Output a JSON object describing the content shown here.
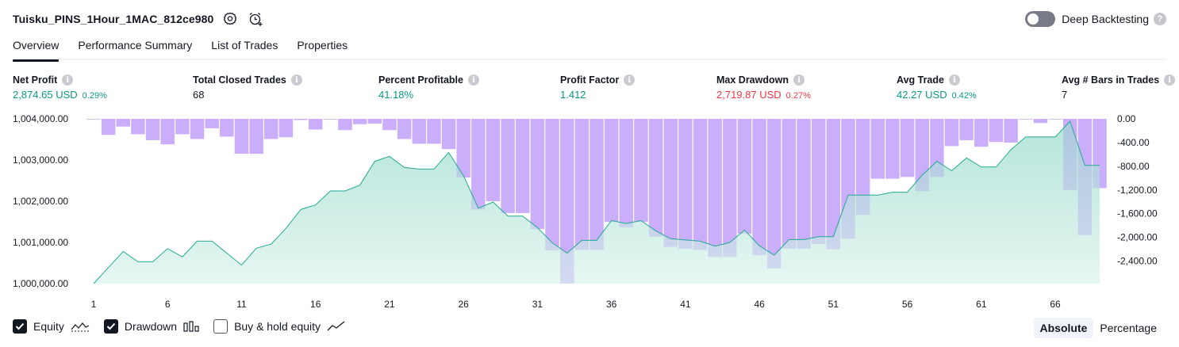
{
  "header": {
    "title": "Tuisku_PINS_1Hour_1MAC_812ce980"
  },
  "deep_backtesting": {
    "label": "Deep Backtesting",
    "help": "?"
  },
  "tabs": [
    {
      "label": "Overview"
    },
    {
      "label": "Performance Summary"
    },
    {
      "label": "List of Trades"
    },
    {
      "label": "Properties"
    }
  ],
  "metrics": {
    "info_glyph": "i",
    "net_profit": {
      "label": "Net Profit",
      "value": "2,874.65 USD",
      "pct": "0.29%"
    },
    "total_closed_trades": {
      "label": "Total Closed Trades",
      "value": "68"
    },
    "percent_profitable": {
      "label": "Percent Profitable",
      "value": "41.18%"
    },
    "profit_factor": {
      "label": "Profit Factor",
      "value": "1.412"
    },
    "max_drawdown": {
      "label": "Max Drawdown",
      "value": "2,719.87 USD",
      "pct": "0.27%"
    },
    "avg_trade": {
      "label": "Avg Trade",
      "value": "42.27 USD",
      "pct": "0.42%"
    },
    "avg_bars": {
      "label": "Avg # Bars in Trades",
      "value": "7"
    }
  },
  "legend": {
    "equity": "Equity",
    "drawdown": "Drawdown",
    "buy_hold": "Buy & hold equity"
  },
  "mode": {
    "absolute": "Absolute",
    "percentage": "Percentage"
  },
  "colors": {
    "equity_line": "#22ab94",
    "equity_fill": "#c7ebe2",
    "drawdown_bar": "#d7b8fc",
    "positive": "#089981",
    "negative": "#f23645"
  },
  "chart_data": {
    "type": "line",
    "x_ticks": [
      1,
      6,
      11,
      16,
      21,
      26,
      31,
      36,
      41,
      46,
      51,
      56,
      61,
      66
    ],
    "y_left_ticks": [
      "1,004,000.00",
      "1,003,000.00",
      "1,002,000.00",
      "1,001,000.00",
      "1,000,000.00"
    ],
    "y_left_values": [
      1004000,
      1003000,
      1002000,
      1001000,
      1000000
    ],
    "y_right_ticks": [
      "0.00",
      "-400.00",
      "-800.00",
      "-1,200.00",
      "-1,600.00",
      "-2,000.00",
      "-2,400.00"
    ],
    "y_right_values": [
      0,
      -400,
      -800,
      -1200,
      -1600,
      -2000,
      -2400
    ],
    "ylim_left": [
      1000000,
      1004000
    ],
    "ylim_right": [
      -2780,
      0
    ],
    "xlim": [
      1,
      69
    ],
    "series": [
      {
        "name": "Equity",
        "values": [
          1000000,
          1000390,
          1000780,
          1000530,
          1000530,
          1000850,
          1000650,
          1001030,
          1001030,
          1000740,
          1000450,
          1000860,
          1000960,
          1001340,
          1001800,
          1001910,
          1002250,
          1002250,
          1002390,
          1002970,
          1003090,
          1002820,
          1002780,
          1002780,
          1003180,
          1002620,
          1001830,
          1001980,
          1001640,
          1001640,
          1001360,
          1000990,
          1000740,
          1001050,
          1001050,
          1001530,
          1001460,
          1001530,
          1001280,
          1001090,
          1001060,
          1001030,
          1000910,
          1001000,
          1001300,
          1000920,
          1000690,
          1001070,
          1001070,
          1001140,
          1001140,
          1002150,
          1002150,
          1002150,
          1002220,
          1002220,
          1002630,
          1002970,
          1002740,
          1003050,
          1002830,
          1002830,
          1003250,
          1003560,
          1003560,
          1003560,
          1003940,
          1002870,
          1002870
        ]
      },
      {
        "name": "Drawdown",
        "values": [
          0,
          -270,
          -130,
          -260,
          -360,
          -430,
          -260,
          -340,
          -160,
          -300,
          -590,
          -590,
          -340,
          -310,
          -20,
          -180,
          0,
          -190,
          -90,
          -80,
          -190,
          -340,
          -420,
          -420,
          -510,
          -990,
          -1530,
          -1390,
          -1590,
          -1590,
          -1860,
          -2220,
          -2780,
          -2210,
          -2210,
          -1740,
          -1830,
          -1740,
          -1990,
          -2160,
          -2190,
          -2210,
          -2330,
          -2330,
          -1940,
          -2300,
          -2520,
          -2190,
          -2190,
          -2110,
          -2200,
          -2020,
          -1620,
          -1010,
          -1010,
          -980,
          -1220,
          -980,
          -460,
          -360,
          -470,
          -390,
          -400,
          0,
          -70,
          0,
          -1200,
          -1960,
          -1170
        ]
      }
    ]
  }
}
